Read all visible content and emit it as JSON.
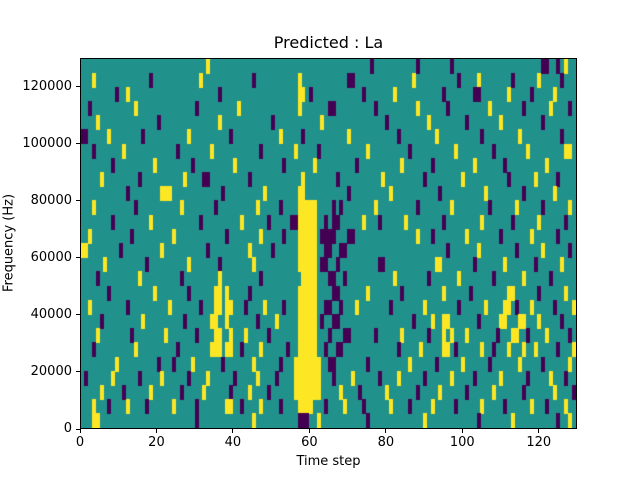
{
  "figure": {
    "title": "Predicted : La",
    "background_color": "#ffffff"
  },
  "chart_data": {
    "type": "heatmap",
    "title": "Predicted : La",
    "xlabel": "Time step",
    "ylabel": "Frequency (Hz)",
    "xlim": [
      0,
      130
    ],
    "ylim": [
      0,
      130000
    ],
    "xticks": [
      0,
      20,
      40,
      60,
      80,
      100,
      120
    ],
    "xtick_labels": [
      "0",
      "20",
      "40",
      "60",
      "80",
      "100",
      "120"
    ],
    "yticks": [
      0,
      20000,
      40000,
      60000,
      80000,
      100000,
      120000
    ],
    "ytick_labels": [
      "0",
      "20000",
      "40000",
      "60000",
      "80000",
      "100000",
      "120000"
    ],
    "legend": "none",
    "grid_lines": "off",
    "colors": {
      ".": "#21918c",
      "y": "#fde725",
      "p": "#440154"
    },
    "grid": {
      "cols": 130,
      "rows": 26,
      "rows_order": "top_to_bottom",
      "cell_key": {
        ".": "mid (teal)",
        "y": "high (yellow)",
        "p": "low (dark purple)"
      },
      "cells": [
        ".......... .......... .......... ...y...... .......... .......... .......... ......p... ........p. .......p.. .......... .......... .pp..p.y..",
        "...y...... ........p. .......... .y........ .....p.... .......y.. .......... pp........ .......y.. .........p ....y..... ...p...... y.....p...",
        ".........p ..y....... .......... ......p... .......... .......yy. p......... ....p..... ..y....... .....p.... ...pp..... ..y.....p. ....y.....",
        "..p....... ....y..... .......... p......... .y........ .......y.. .....pp... .......p.. ........y. ......p... .......y.. ......p... ...y....p.",
        "....y..... .......... p......... ......y... .......... p......... ...y...... .......... p......... .y........ .p........ y......... .p........",
        "pp.....y.. ......p... ........y. .........p .......... ..y.....p. .......... y......... ...p...... ...y...... .....p.... .....y.... ......p...",
        "...p...... .y........ .....p.... ....y..... .......p.. ......y... ..p....... .....y.... ......p... ........y. ........p. .......y.. .......yy.",
        "........p. .........y .........p .......... y......... ...p...... .y........ ..p....... ....y..... ..p....... ...y...... .p........ ..y.......",
        ".....y.... .....p.... .......y.. ..pp...... ....p..... ........y. .......p.. .........y .......... p......... y......... ..p......y .....p....",
        ".......... ..p....... .yyy...... .......p.. ........y. .......yy. .......... p......... .y........ ....p..... ......y... ......p... ....y.....",
        "...y...... ....p..... ......y... .....p.... ......y... ..p....yyy yy....p.p. .......y.. ........p. .......y.. .......p.. ....y..... .p......y.",
        "........p. ........y. .......... .p........ ..y......p .....ppyyy yy..p.pp.. ....y...p. .....y.... .....p.... .....y.... ...p...... y......p..",
        "..y....... ...p...... ....y..... ........p. .......y.. ...p...yyy yy.pppp... pp........ ........y. ..p....... .y........ p.......y. .....p....",
        "yy........ p......... .y........ ...p...... ....y..... p......yyy yy..pp..pp .......... .......... ......p... ....y..... ....p..... .y......p.",
        "......y... .......p.. ........y. ......p... .....y.... .......yyy yy.pp..p.. ........pp .......... ...yy..... ...p...... .y.......p ......y...",
        "....p..... .....y.... ......p... ......y... .......p.. ........yy yy...pp..p .......... ..y....... .p.......y ........p. ......y... ...p......",
        ".......p.. .........y ........p. .....yy.y. ....p..... .......yyy yy....pp.. .....y.... ....p..... .....y.... ..p....... ..yy...... p......y..",
        "..y....... ..p....... ...y...... .p...yy.yy ...p....y. ...p...yyy yy..pp..p. ..y....... .p........ y........p ......y... .yy.p...y. ....p....y",
        ".....p.... ......y... .......p.. ....yy..y. ......p... .y.....yyy yy.p..pp.. .......... .......p.. ..y..yy... ....p..... yy...yy... y.....p...",
        "....y..... ...p...... ..y....... p....yy..y ...y.....p .......yyy yy...p...p p......p.. ....y..... .p...y.y.. .y.......p ...yy..p.. ..y.....p.",
        "...p...... ....y..... .....p.... ....yyy.yy ..p....y.. ....p..yyy yy..p..pp. .......... ...p.....y .....yy.p. .....y..p. ..y...y..y .....p...y",
        ".........y .......... p...p....y .......p.. .....y.... ..p...yyyy yyy..pp... .....p.... ......y... ...p...... y......p.. .....y.... .p......y.",
        ".p......y. .....p.... .y......p. ...y...... p.....y... .p....yyyy yyy...p... .y......p. ...y...... p......y.. ...p...... y......p.. ...y...p..",
        ".....y.... .p......y. ......p... ..y......p ....y....p ......yyyy yyy.....y. ...p...... y.......p. ....y..... .p......y. ......p... ....y....p",
        "...y...p.. ..y....p.. ....y..... p.......yy ..p....y.. ..p....yyy y...p....y ....p..... .y....p... ..y.....p. .....y.... .p......y. ..p....y..",
        "...yy..... .......... .......... p......... .....y.... .......ppp ..y....... .....p.... .......... y......... ....p..... ...y...... .....p..y."
      ]
    }
  }
}
